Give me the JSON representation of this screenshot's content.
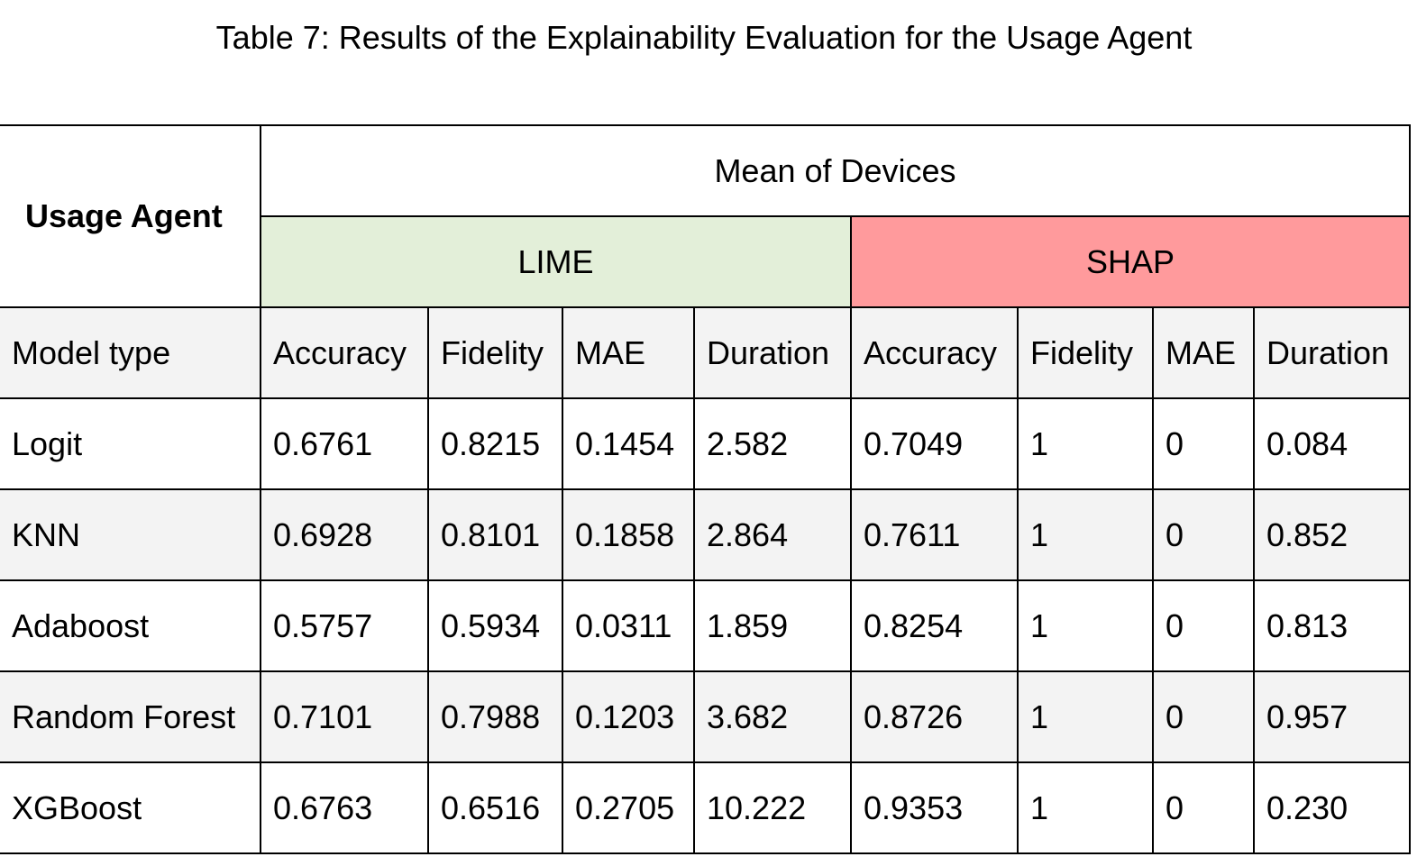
{
  "caption": "Table 7: Results of the Explainability Evaluation for the Usage Agent",
  "table": {
    "corner_label": "Usage Agent",
    "group_header": "Mean of Devices",
    "methods": [
      "LIME",
      "SHAP"
    ],
    "row_label_header": "Model type",
    "columns": [
      "Accuracy",
      "Fidelity",
      "MAE",
      "Duration",
      "Accuracy",
      "Fidelity",
      "MAE",
      "Duration"
    ],
    "rows": [
      {
        "model": "Logit",
        "values": [
          "0.6761",
          "0.8215",
          "0.1454",
          "2.582",
          "0.7049",
          "1",
          "0",
          "0.084"
        ]
      },
      {
        "model": "KNN",
        "values": [
          "0.6928",
          "0.8101",
          "0.1858",
          "2.864",
          "0.7611",
          "1",
          "0",
          "0.852"
        ]
      },
      {
        "model": "Adaboost",
        "values": [
          "0.5757",
          "0.5934",
          "0.0311",
          "1.859",
          "0.8254",
          "1",
          "0",
          "0.813"
        ]
      },
      {
        "model": "Random Forest",
        "values": [
          "0.7101",
          "0.7988",
          "0.1203",
          "3.682",
          "0.8726",
          "1",
          "0",
          "0.957"
        ]
      },
      {
        "model": "XGBoost",
        "values": [
          "0.6763",
          "0.6516",
          "0.2705",
          "10.222",
          "0.9353",
          "1",
          "0",
          "0.230"
        ]
      }
    ]
  }
}
